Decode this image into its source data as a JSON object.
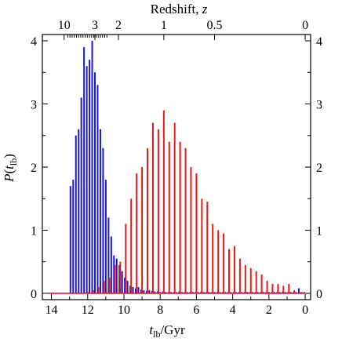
{
  "chart_data": {
    "type": "bar",
    "title": "",
    "top_axis_label": "Redshift, z",
    "top_axis_label_prefix": "Redshift, ",
    "top_axis_label_var": "z",
    "ylabel_main": "P",
    "ylabel_var": "t",
    "ylabel_sub": "lb",
    "xlabel_var": "t",
    "xlabel_sub": "lb",
    "xlabel_unit": "/Gyr",
    "xlim": [
      14.5,
      -0.3
    ],
    "ylim": [
      -0.1,
      4.1
    ],
    "x_ticks": [
      "14",
      "12",
      "10",
      "8",
      "6",
      "4",
      "2",
      "0"
    ],
    "y_ticks": [
      "0",
      "1",
      "2",
      "3",
      "4"
    ],
    "top_ticks": [
      {
        "label": "10",
        "t": 13.3
      },
      {
        "label": "3",
        "t": 11.6
      },
      {
        "label": "2",
        "t": 10.3
      },
      {
        "label": "1",
        "t": 7.8
      },
      {
        "label": "0.5",
        "t": 5.0
      },
      {
        "label": "0",
        "t": 0.0
      }
    ],
    "series": [
      {
        "color": "#1a1acc",
        "x": [
          12.95,
          12.8,
          12.65,
          12.5,
          12.35,
          12.2,
          12.05,
          11.9,
          11.75,
          11.6,
          11.45,
          11.3,
          11.15,
          11.0,
          10.85,
          10.7,
          10.55,
          10.4,
          10.25,
          10.1,
          9.95,
          9.8,
          9.65,
          9.5,
          9.35,
          9.2,
          9.05,
          8.9,
          8.75,
          8.6,
          8.45,
          8.3,
          8.15,
          8.0,
          7.85,
          7.7,
          7.55,
          7.4,
          7.25,
          7.1,
          6.95,
          6.8,
          6.65,
          6.5,
          6.35,
          6.2,
          6.05,
          5.9,
          5.75,
          5.6,
          5.45,
          5.3,
          5.15,
          5.0,
          4.85,
          4.7,
          4.55,
          4.4,
          4.25,
          4.1,
          3.95,
          3.8,
          3.65,
          3.5,
          3.35,
          3.2,
          3.05,
          2.9,
          2.75,
          2.6,
          2.45,
          2.3,
          2.15,
          2.0,
          1.85,
          1.7,
          1.55,
          1.4,
          1.25,
          1.1,
          0.95,
          0.8,
          0.65,
          0.5,
          0.35,
          0.2,
          0.05
        ],
        "values": [
          1.7,
          1.8,
          2.5,
          2.6,
          3.1,
          3.9,
          3.6,
          3.7,
          4.0,
          3.5,
          3.3,
          2.6,
          2.3,
          1.8,
          1.2,
          0.9,
          0.6,
          0.55,
          0.45,
          0.35,
          0.25,
          0.2,
          0.12,
          0.1,
          0.08,
          0.1,
          0.06,
          0.05,
          0.04,
          0.05,
          0.04,
          0.03,
          0.03,
          0.02,
          0.03,
          0.02,
          0.02,
          0.02,
          0.02,
          0.02,
          0.03,
          0.02,
          0.02,
          0.02,
          0.02,
          0.02,
          0.02,
          0.02,
          0.02,
          0.02,
          0.02,
          0.02,
          0.02,
          0.02,
          0.02,
          0.02,
          0.02,
          0.02,
          0.02,
          0.02,
          0.02,
          0.02,
          0.02,
          0.02,
          0.02,
          0.02,
          0.02,
          0.02,
          0.02,
          0.02,
          0.02,
          0.02,
          0.02,
          0.02,
          0.02,
          0.02,
          0.02,
          0.02,
          0.02,
          0.02,
          0.02,
          0.02,
          0.02,
          0.02,
          0.08,
          0.02,
          0.02
        ]
      },
      {
        "color": "#e61a1a",
        "x": [
          12.0,
          11.7,
          11.4,
          11.1,
          10.8,
          10.5,
          10.2,
          9.9,
          9.6,
          9.3,
          9.0,
          8.7,
          8.4,
          8.1,
          7.8,
          7.5,
          7.2,
          6.9,
          6.6,
          6.3,
          6.0,
          5.7,
          5.4,
          5.1,
          4.8,
          4.5,
          4.2,
          3.9,
          3.6,
          3.3,
          3.0,
          2.7,
          2.4,
          2.1,
          1.8,
          1.5,
          1.2,
          0.9,
          0.6,
          0.3
        ],
        "values": [
          0.02,
          0.05,
          0.1,
          0.2,
          0.25,
          0.45,
          0.5,
          1.1,
          1.5,
          1.9,
          2.0,
          2.3,
          2.7,
          2.6,
          2.9,
          2.4,
          2.7,
          2.4,
          2.3,
          2.0,
          1.9,
          1.5,
          1.45,
          1.1,
          1.0,
          0.95,
          0.7,
          0.75,
          0.55,
          0.45,
          0.4,
          0.35,
          0.3,
          0.2,
          0.15,
          0.15,
          0.12,
          0.15,
          0.05,
          0.02
        ]
      }
    ]
  }
}
